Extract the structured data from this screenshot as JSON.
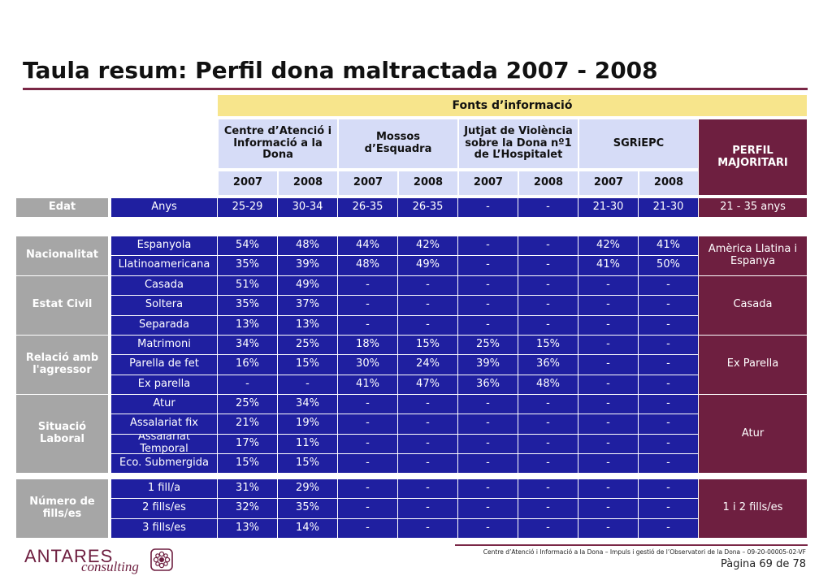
{
  "title": "Taula resum: Perfil dona maltractada 2007 - 2008",
  "sources_header": "Fonts d’informació",
  "sources": [
    {
      "name": "Centre d’Atenció i Informació a la Dona",
      "years": [
        "2007",
        "2008"
      ]
    },
    {
      "name": "Mossos d’Esquadra",
      "years": [
        "2007",
        "2008"
      ]
    },
    {
      "name": "Jutjat de Violència sobre la Dona nº1 de L’Hospitalet",
      "years": [
        "2007",
        "2008"
      ]
    },
    {
      "name": "SGRiEPC",
      "years": [
        "2007",
        "2008"
      ]
    }
  ],
  "profile_header": "PERFIL MAJORITARI",
  "groups": [
    {
      "label": "Edat",
      "profile": "21 - 35 anys",
      "rows": [
        {
          "label": "Anys",
          "values": [
            "25-29",
            "30-34",
            "26-35",
            "26-35",
            "-",
            "-",
            "21-30",
            "21-30"
          ]
        }
      ]
    },
    {
      "label": "Nacionalitat",
      "profile": "Amèrica Llatina i Espanya",
      "rows": [
        {
          "label": "Espanyola",
          "values": [
            "54%",
            "48%",
            "44%",
            "42%",
            "-",
            "-",
            "42%",
            "41%"
          ]
        },
        {
          "label": "Llatinoamericana",
          "values": [
            "35%",
            "39%",
            "48%",
            "49%",
            "-",
            "-",
            "41%",
            "50%"
          ]
        }
      ]
    },
    {
      "label": "Estat Civil",
      "profile": "Casada",
      "rows": [
        {
          "label": "Casada",
          "values": [
            "51%",
            "49%",
            "-",
            "-",
            "-",
            "-",
            "-",
            "-"
          ]
        },
        {
          "label": "Soltera",
          "values": [
            "35%",
            "37%",
            "-",
            "-",
            "-",
            "-",
            "-",
            "-"
          ]
        },
        {
          "label": "Separada",
          "values": [
            "13%",
            "13%",
            "-",
            "-",
            "-",
            "-",
            "-",
            "-"
          ]
        }
      ]
    },
    {
      "label": "Relació amb l'agressor",
      "profile": "Ex Parella",
      "rows": [
        {
          "label": "Matrimoni",
          "values": [
            "34%",
            "25%",
            "18%",
            "15%",
            "25%",
            "15%",
            "-",
            "-"
          ]
        },
        {
          "label": "Parella de fet",
          "values": [
            "16%",
            "15%",
            "30%",
            "24%",
            "39%",
            "36%",
            "-",
            "-"
          ]
        },
        {
          "label": "Ex parella",
          "values": [
            "-",
            "-",
            "41%",
            "47%",
            "36%",
            "48%",
            "-",
            "-"
          ]
        }
      ]
    },
    {
      "label": "Situació Laboral",
      "profile": "Atur",
      "rows": [
        {
          "label": "Atur",
          "values": [
            "25%",
            "34%",
            "-",
            "-",
            "-",
            "-",
            "-",
            "-"
          ]
        },
        {
          "label": "Assalariat fix",
          "values": [
            "21%",
            "19%",
            "-",
            "-",
            "-",
            "-",
            "-",
            "-"
          ]
        },
        {
          "label": "Assalariat Temporal",
          "values": [
            "17%",
            "11%",
            "-",
            "-",
            "-",
            "-",
            "-",
            "-"
          ]
        },
        {
          "label": "Eco. Submergida",
          "values": [
            "15%",
            "15%",
            "-",
            "-",
            "-",
            "-",
            "-",
            "-"
          ]
        }
      ]
    },
    {
      "label": "Número de fills/es",
      "profile": "1 i 2 fills/es",
      "rows": [
        {
          "label": "1 fill/a",
          "values": [
            "31%",
            "29%",
            "-",
            "-",
            "-",
            "-",
            "-",
            "-"
          ]
        },
        {
          "label": "2 fills/es",
          "values": [
            "32%",
            "35%",
            "-",
            "-",
            "-",
            "-",
            "-",
            "-"
          ]
        },
        {
          "label": "3 fills/es",
          "values": [
            "13%",
            "14%",
            "-",
            "-",
            "-",
            "-",
            "-",
            "-"
          ]
        }
      ]
    }
  ],
  "footer": {
    "text": "Centre d’Atenció i Informació a la Dona – Impuls i gestió de l’Observatori de la Dona – 09-20-00005-02-VF",
    "page": "Pàgina 69 de 78",
    "logo_main": "ANTARES",
    "logo_sub": "consulting"
  },
  "colors": {
    "accent": "#6e1f40",
    "table_blue": "#1f1fa0",
    "header_yellow": "#f7e58c",
    "header_lavender": "#d6dcf7"
  }
}
